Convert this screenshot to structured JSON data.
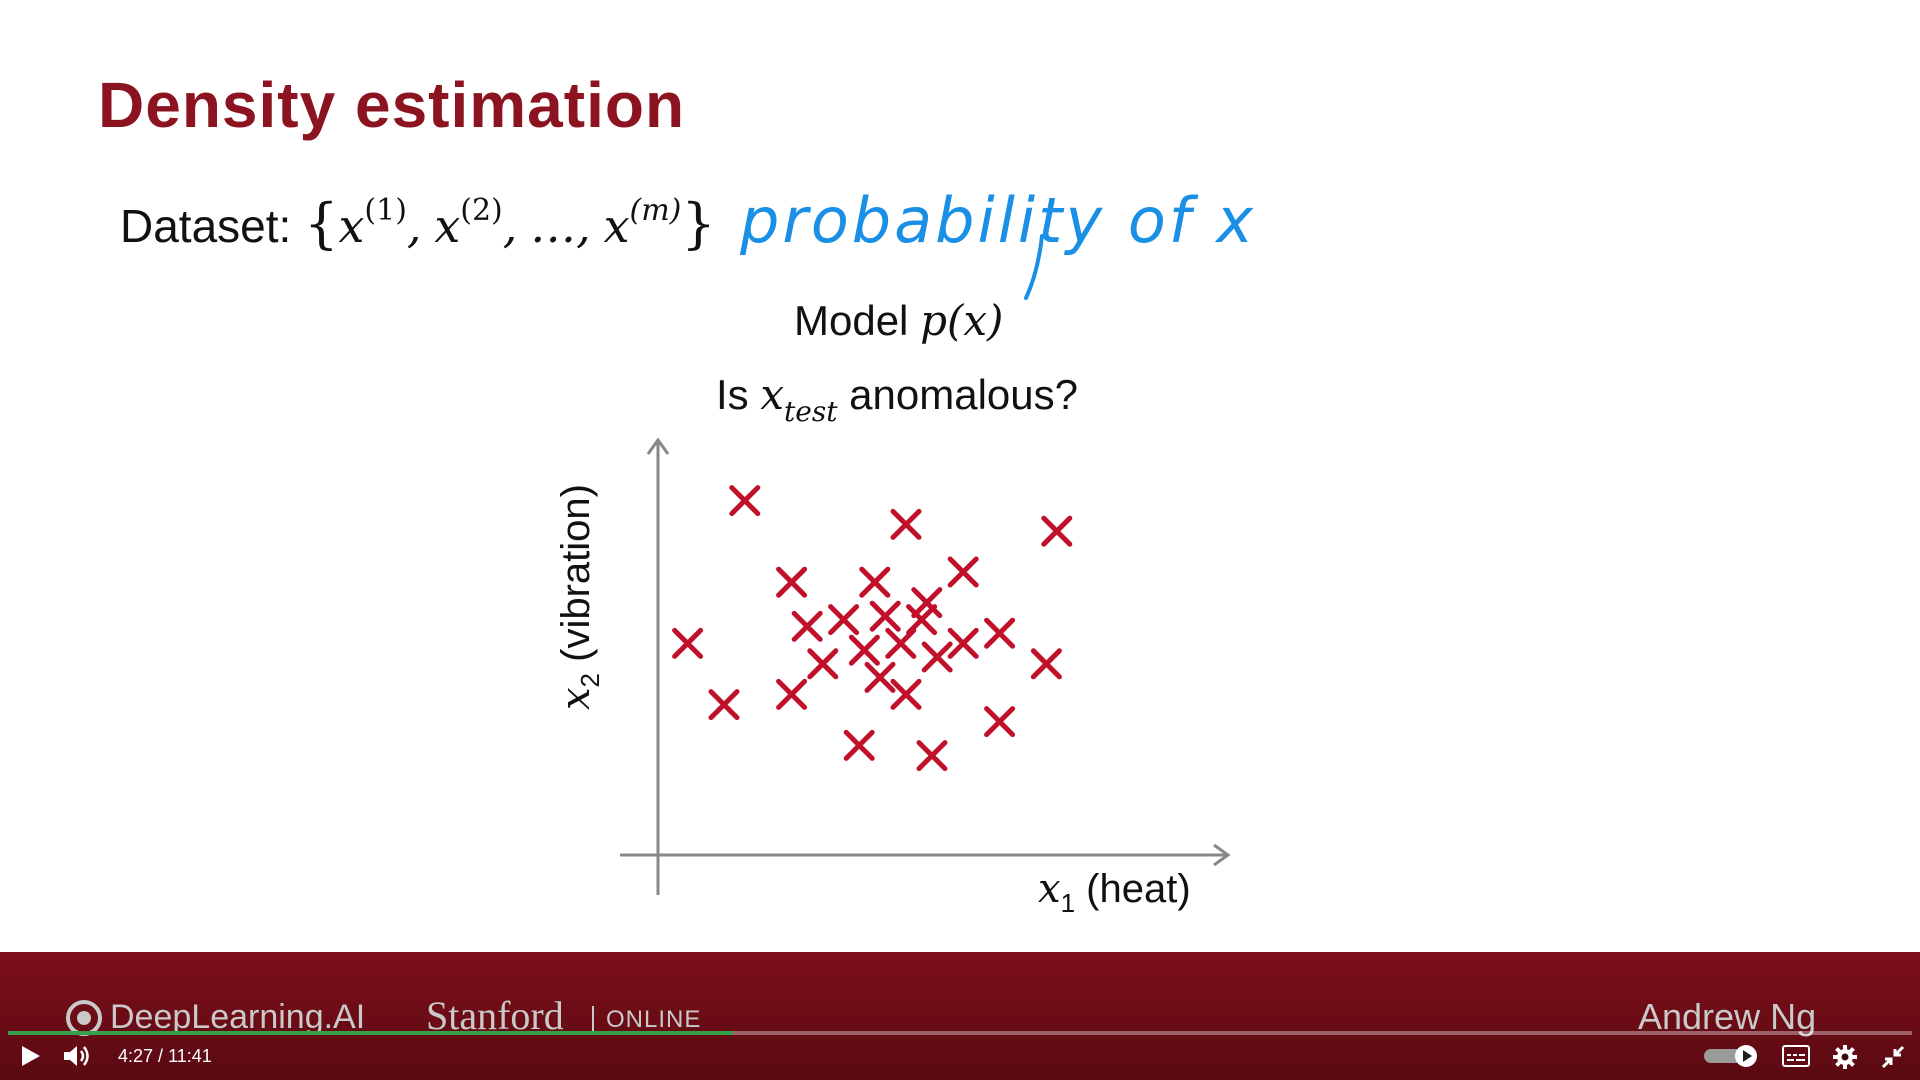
{
  "slide": {
    "title": "Density estimation",
    "dataset_label": "Dataset:",
    "dataset_set": {
      "open": "{",
      "x1": "x",
      "x1_sup": "(1)",
      "x2": "x",
      "x2_sup": "(2)",
      "dots": "…",
      "xm": "x",
      "xm_sup": "(m)",
      "close": "}"
    },
    "handwritten_note": "probability of x",
    "model_prefix": "Model ",
    "model_expr": "p(x)",
    "question_prefix": "Is ",
    "question_var": "x",
    "question_sub": "test",
    "question_suffix": " anomalous?",
    "colors": {
      "title": "#8b1420",
      "marker": "#c0102a",
      "handwriting": "#1a8fe6",
      "axis": "#888888"
    }
  },
  "chart_data": {
    "type": "scatter",
    "xlabel": "x1 (heat)",
    "ylabel": "x2 (vibration)",
    "xlabel_var": "x",
    "xlabel_sub": "1",
    "xlabel_text": " (heat)",
    "ylabel_var": "x",
    "ylabel_sub": "2",
    "ylabel_text": " (vibration)",
    "marker": "cross",
    "grid": false,
    "xlim": [
      0,
      100
    ],
    "ylim": [
      0,
      100
    ],
    "points": [
      {
        "x": 24,
        "y": 91
      },
      {
        "x": 55,
        "y": 84
      },
      {
        "x": 84,
        "y": 82
      },
      {
        "x": 33,
        "y": 67
      },
      {
        "x": 49,
        "y": 67
      },
      {
        "x": 66,
        "y": 70
      },
      {
        "x": 59,
        "y": 61
      },
      {
        "x": 36,
        "y": 54
      },
      {
        "x": 43,
        "y": 56
      },
      {
        "x": 51,
        "y": 57
      },
      {
        "x": 58,
        "y": 56
      },
      {
        "x": 13,
        "y": 49
      },
      {
        "x": 47,
        "y": 47
      },
      {
        "x": 54,
        "y": 49
      },
      {
        "x": 61,
        "y": 45
      },
      {
        "x": 66,
        "y": 49
      },
      {
        "x": 73,
        "y": 52
      },
      {
        "x": 39,
        "y": 43
      },
      {
        "x": 50,
        "y": 39
      },
      {
        "x": 55,
        "y": 34
      },
      {
        "x": 82,
        "y": 43
      },
      {
        "x": 33,
        "y": 34
      },
      {
        "x": 20,
        "y": 31
      },
      {
        "x": 73,
        "y": 26
      },
      {
        "x": 46,
        "y": 19
      },
      {
        "x": 60,
        "y": 16
      }
    ]
  },
  "banner": {
    "deeplearning": "DeepLearning.AI",
    "stanford": "Stanford",
    "online": "ONLINE",
    "presenter": "Andrew Ng"
  },
  "player": {
    "current_time": "4:27",
    "separator": " / ",
    "duration": "11:41",
    "progress_fraction": 0.381,
    "progress_color": "#37a04a"
  }
}
